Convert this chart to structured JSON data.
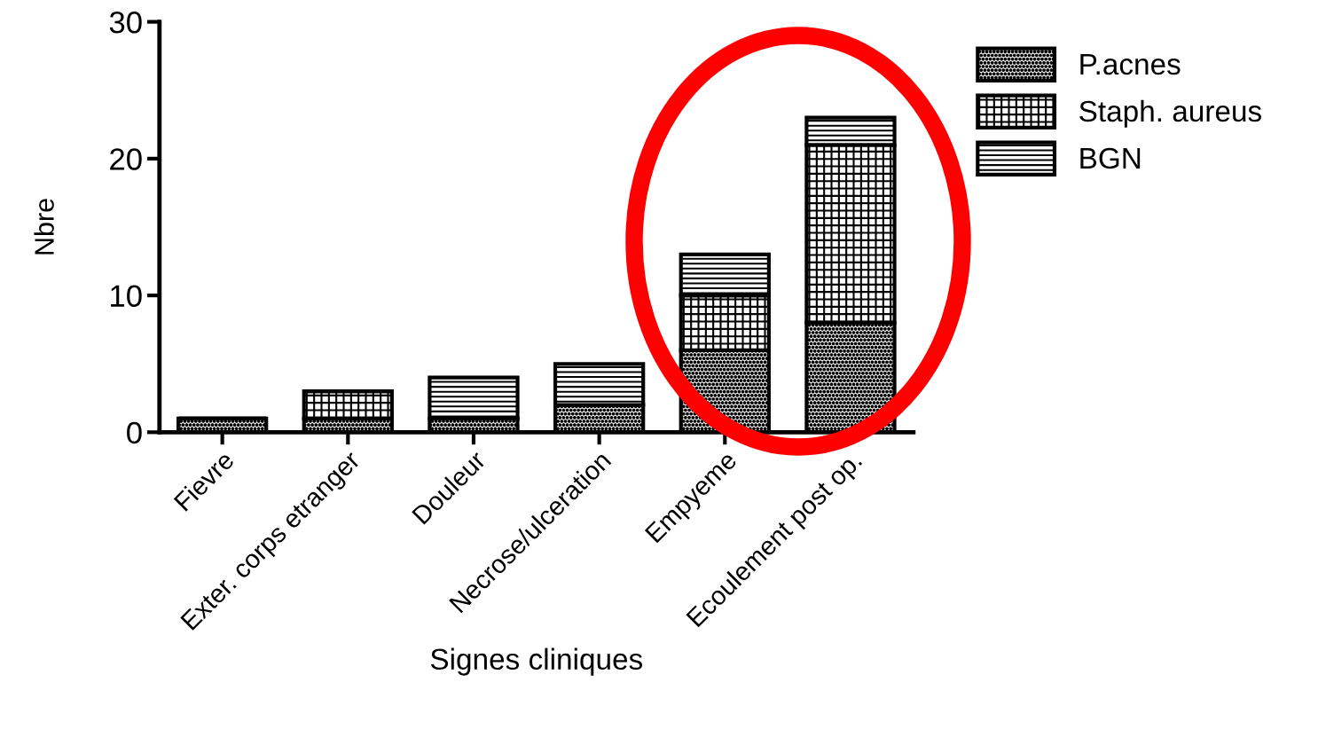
{
  "chart_data": {
    "type": "bar",
    "stacked": true,
    "xlabel": "Signes cliniques",
    "ylabel": "Nbre",
    "categories": [
      "Fievre",
      "Exter. corps etranger",
      "Douleur",
      "Necrose/ulceration",
      "Empyeme",
      "Ecoulement post op."
    ],
    "series": [
      {
        "name": "P.acnes",
        "color": "#000000",
        "values": [
          1,
          1,
          1,
          2,
          6,
          8
        ]
      },
      {
        "name": "Staph. aureus",
        "color": "#000000",
        "values": [
          0,
          2,
          0,
          0,
          4,
          13
        ]
      },
      {
        "name": "BGN",
        "color": "#000000",
        "values": [
          0,
          0,
          3,
          3,
          3,
          2
        ]
      }
    ],
    "ylim": [
      0,
      30
    ],
    "yticks": [
      0,
      10,
      20,
      30
    ],
    "grid": false,
    "legend": "top right"
  }
}
